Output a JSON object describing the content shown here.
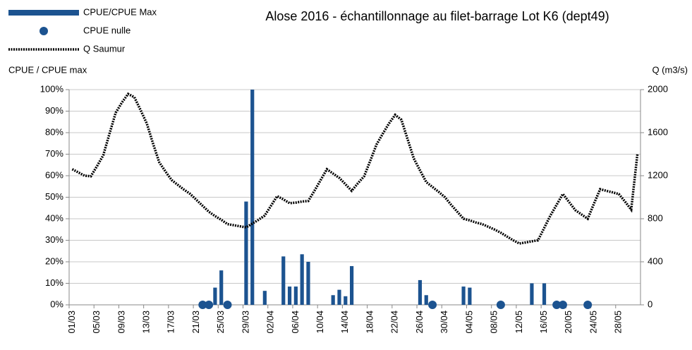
{
  "chart_data": {
    "type": "bar",
    "title": "Alose 2016 - échantillonnage au filet-barrage Lot K6 (dept49)",
    "ylabel": "CPUE / CPUE max",
    "y2label": "Q (m3/s)",
    "categories": [
      "01/03",
      null,
      null,
      null,
      "05/03",
      null,
      null,
      null,
      "09/03",
      null,
      null,
      null,
      "13/03",
      null,
      null,
      null,
      "17/03",
      null,
      null,
      null,
      "21/03",
      null,
      null,
      null,
      "25/03",
      null,
      null,
      null,
      "29/03",
      null,
      null,
      null,
      "02/04",
      null,
      null,
      null,
      "06/04",
      null,
      null,
      null,
      "10/04",
      null,
      null,
      null,
      "14/04",
      null,
      null,
      null,
      "18/04",
      null,
      null,
      null,
      "22/04",
      null,
      null,
      null,
      "26/04",
      null,
      null,
      null,
      "30/04",
      null,
      null,
      null,
      "04/05",
      null,
      null,
      null,
      "08/05",
      null,
      null,
      null,
      "12/05",
      null,
      null,
      null,
      "16/05",
      null,
      null,
      null,
      "20/05",
      null,
      null,
      null,
      "24/05",
      null,
      null,
      null,
      "28/05",
      null,
      null,
      null
    ],
    "series": [
      {
        "name": "CPUE/CPUE Max",
        "type": "bar",
        "color": "#1c5390",
        "values": [
          null,
          null,
          null,
          null,
          null,
          null,
          null,
          null,
          null,
          null,
          null,
          null,
          null,
          null,
          null,
          null,
          null,
          null,
          null,
          null,
          null,
          null,
          null,
          8,
          16,
          null,
          null,
          null,
          48,
          100,
          null,
          6.5,
          null,
          null,
          22.5,
          8.5,
          8.5,
          23.5,
          20,
          null,
          null,
          null,
          4.5,
          7,
          4,
          18,
          null,
          null,
          null,
          null,
          null,
          null,
          null,
          null,
          null,
          null,
          11.5,
          4.5,
          null,
          null,
          null,
          null,
          null,
          8.5,
          8,
          null,
          null,
          null,
          null,
          null,
          null,
          null,
          null,
          null,
          10,
          null,
          10,
          null,
          null,
          null,
          null,
          null,
          null,
          null,
          null,
          null,
          null,
          null,
          null,
          null,
          null,
          null
        ]
      },
      {
        "name": "CPUE nulle",
        "type": "scatter",
        "color": "#1c5390",
        "values": [
          null,
          null,
          null,
          null,
          null,
          null,
          null,
          null,
          null,
          null,
          null,
          null,
          null,
          null,
          null,
          null,
          null,
          null,
          null,
          null,
          null,
          0,
          0,
          null,
          null,
          0,
          null,
          null,
          null,
          null,
          null,
          null,
          null,
          null,
          null,
          null,
          null,
          null,
          null,
          null,
          null,
          null,
          null,
          null,
          null,
          null,
          null,
          null,
          null,
          null,
          null,
          null,
          null,
          null,
          null,
          null,
          null,
          null,
          0,
          null,
          null,
          null,
          null,
          null,
          null,
          null,
          null,
          null,
          null,
          0,
          null,
          null,
          null,
          null,
          null,
          null,
          null,
          null,
          0,
          0,
          null,
          null,
          null,
          0,
          null,
          null,
          null,
          null,
          null,
          null,
          null,
          null
        ]
      },
      {
        "name": "Q Saumur",
        "type": "line",
        "axis": "y2",
        "color": "#000000",
        "values": [
          1260,
          1230,
          1200,
          1195,
          1290,
          1390,
          1590,
          1785,
          1880,
          1960,
          1930,
          1810,
          1685,
          1500,
          1325,
          1240,
          1160,
          1115,
          1070,
          1030,
          975,
          920,
          865,
          825,
          790,
          750,
          740,
          730,
          720,
          755,
          790,
          830,
          920,
          1010,
          980,
          945,
          950,
          960,
          965,
          1060,
          1160,
          1260,
          1220,
          1180,
          1120,
          1060,
          1130,
          1195,
          1340,
          1490,
          1590,
          1685,
          1765,
          1720,
          1540,
          1360,
          1250,
          1140,
          1095,
          1050,
          1000,
          930,
          865,
          800,
          785,
          765,
          750,
          725,
          700,
          670,
          635,
          600,
          570,
          580,
          590,
          600,
          715,
          830,
          930,
          1030,
          955,
          880,
          840,
          800,
          940,
          1075,
          1060,
          1045,
          1030,
          960,
          885,
          1400
        ]
      }
    ],
    "ylim": [
      0,
      100
    ],
    "yticks": [
      {
        "value": 0,
        "label": "0%"
      },
      {
        "value": 10,
        "label": "10%"
      },
      {
        "value": 20,
        "label": "20%"
      },
      {
        "value": 30,
        "label": "30%"
      },
      {
        "value": 40,
        "label": "40%"
      },
      {
        "value": 50,
        "label": "50%"
      },
      {
        "value": 60,
        "label": "60%"
      },
      {
        "value": 70,
        "label": "70%"
      },
      {
        "value": 80,
        "label": "80%"
      },
      {
        "value": 90,
        "label": "90%"
      },
      {
        "value": 100,
        "label": "100%"
      }
    ],
    "y2lim": [
      0,
      2000
    ],
    "y2ticks": [
      0,
      400,
      800,
      1200,
      1600,
      2000
    ],
    "grid": true
  }
}
